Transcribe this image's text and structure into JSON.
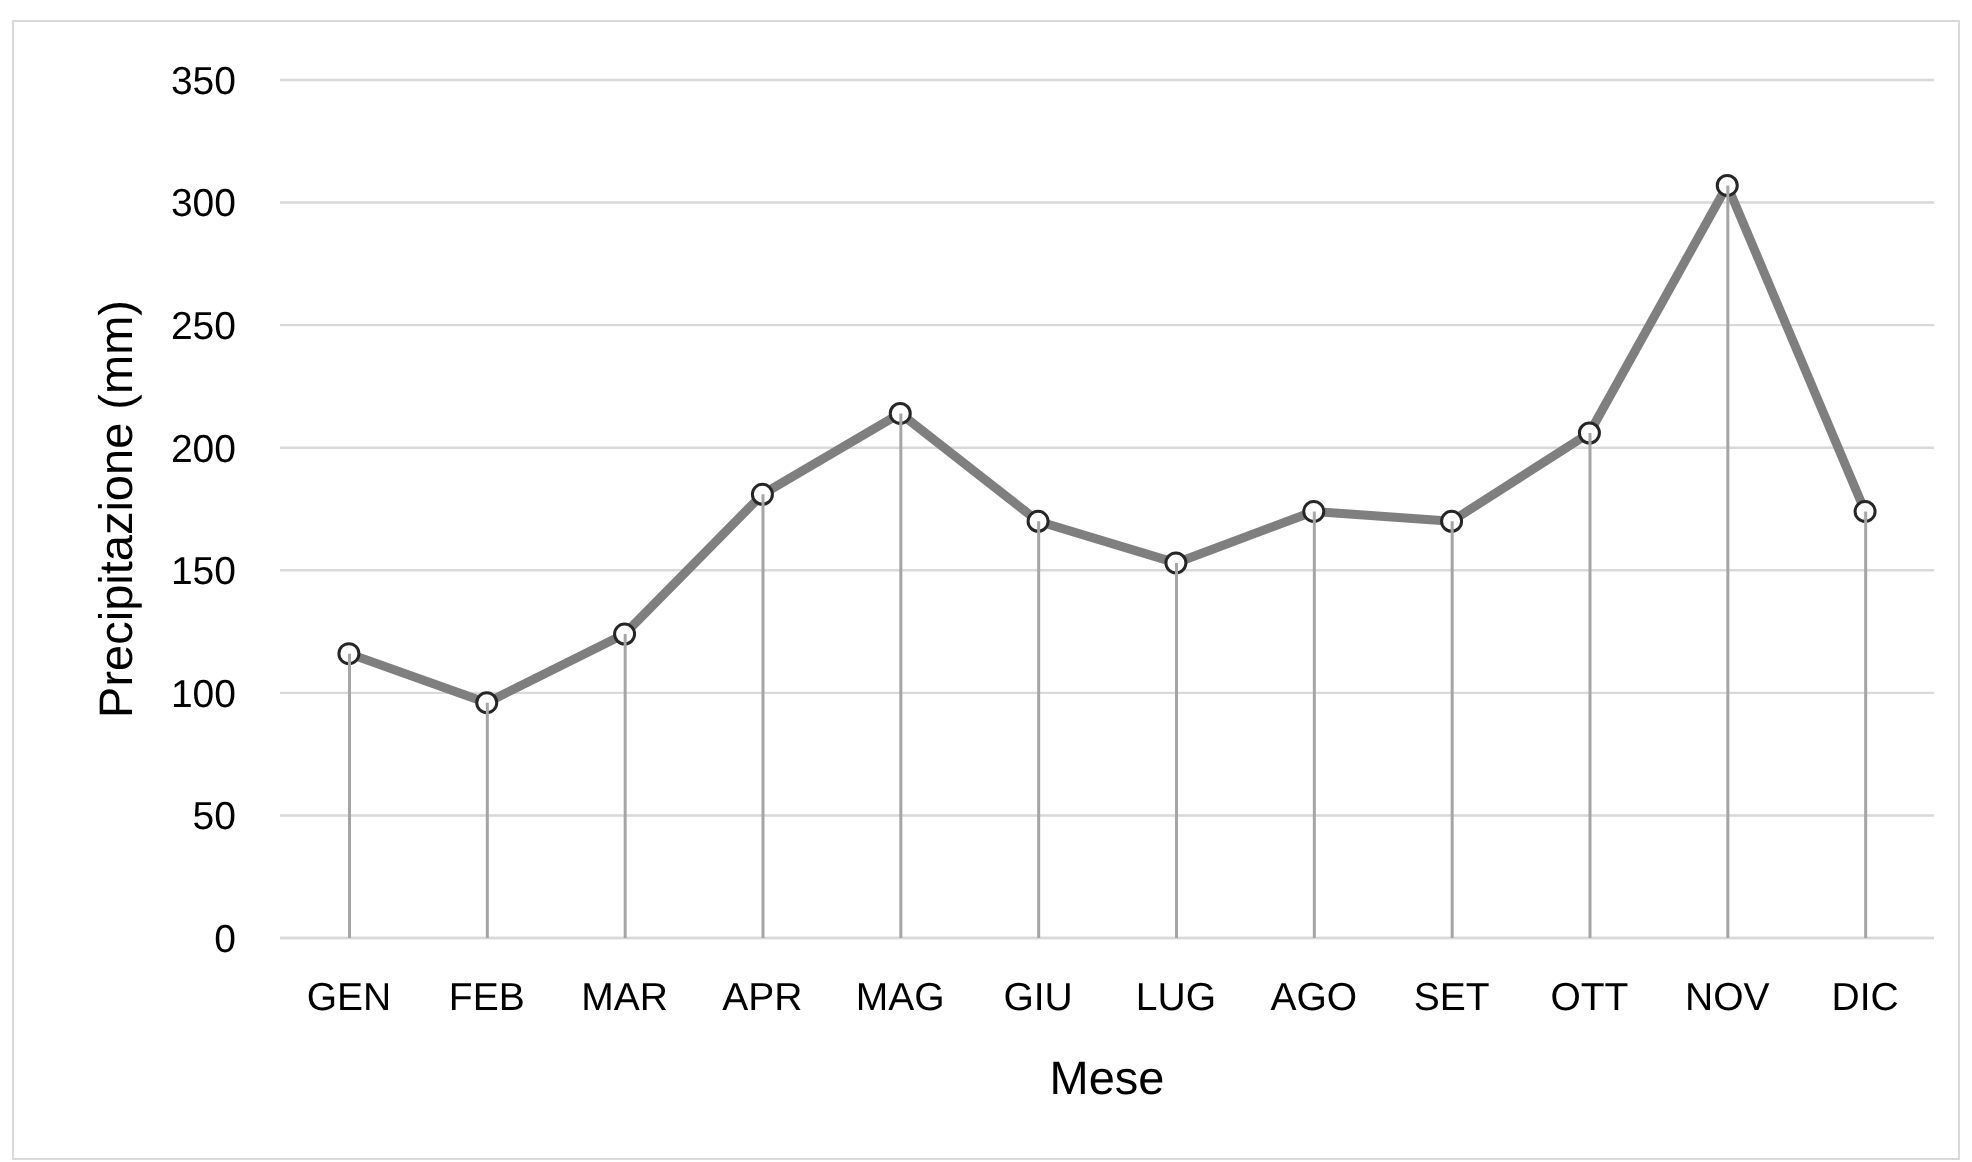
{
  "chart_data": {
    "type": "line",
    "xlabel": "Mese",
    "ylabel": "Precipitazione (mm)",
    "categories": [
      "GEN",
      "FEB",
      "MAR",
      "APR",
      "MAG",
      "GIU",
      "LUG",
      "AGO",
      "SET",
      "OTT",
      "NOV",
      "DIC"
    ],
    "series": [
      {
        "type": "bar",
        "color": "#a5a5a5",
        "values": [
          116,
          96,
          124,
          181,
          214,
          170,
          153,
          174,
          170,
          206,
          307,
          174
        ]
      },
      {
        "color": "#7f7f7f",
        "values": [
          116,
          96,
          124,
          181,
          214,
          170,
          153,
          174,
          170,
          206,
          307,
          174
        ]
      }
    ],
    "ylim": [
      0,
      350
    ],
    "yticks": [
      0,
      50,
      100,
      150,
      200,
      250,
      300,
      350
    ],
    "grid": "y",
    "marker": "circle",
    "line_style": "solid"
  }
}
